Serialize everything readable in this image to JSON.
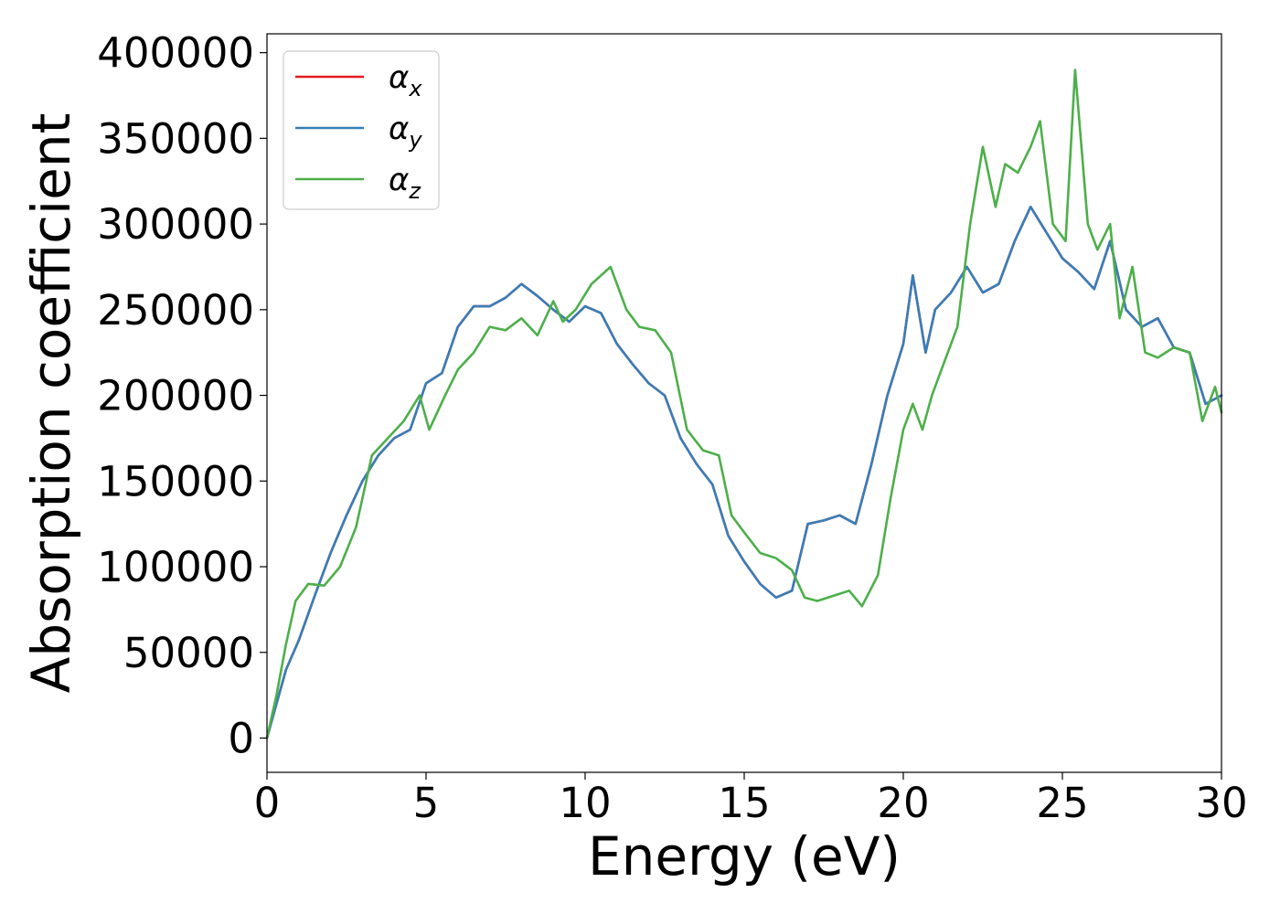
{
  "chart_data": {
    "type": "line",
    "title": "",
    "xlabel": "Energy (eV)",
    "ylabel": "Absorption coefficient",
    "xlim": [
      0,
      30
    ],
    "ylim": [
      -20000,
      411000
    ],
    "xticks": [
      0,
      5,
      10,
      15,
      20,
      25,
      30
    ],
    "yticks": [
      0,
      50000,
      100000,
      150000,
      200000,
      250000,
      300000,
      350000,
      400000
    ],
    "grid": false,
    "legend_position": "upper-left",
    "series": [
      {
        "name": "α_x",
        "label_main": "α",
        "label_sub": "x",
        "color": "#e41a1c",
        "x": [
          0,
          0.3,
          0.6,
          1.0,
          1.5,
          2.0,
          2.5,
          3.0,
          3.5,
          4.0,
          4.5,
          5.0,
          5.5,
          6.0,
          6.5,
          7.0,
          7.5,
          8.0,
          8.5,
          9.0,
          9.5,
          10.0,
          10.5,
          11.0,
          11.5,
          12.0,
          12.5,
          13.0,
          13.5,
          14.0,
          14.5,
          15.0,
          15.5,
          16.0,
          16.5,
          17.0,
          17.5,
          18.0,
          18.5,
          19.0,
          19.5,
          20.0,
          20.3,
          20.7,
          21.0,
          21.5,
          22.0,
          22.5,
          23.0,
          23.5,
          24.0,
          24.5,
          25.0,
          25.5,
          26.0,
          26.5,
          27.0,
          27.5,
          28.0,
          28.5,
          29.0,
          29.5,
          30.0
        ],
        "y": [
          0,
          20000,
          40000,
          57000,
          83000,
          108000,
          130000,
          150000,
          165000,
          175000,
          180000,
          207000,
          213000,
          240000,
          252000,
          252000,
          257000,
          265000,
          258000,
          250000,
          243000,
          252000,
          248000,
          230000,
          218000,
          207000,
          200000,
          175000,
          160000,
          148000,
          118000,
          103000,
          90000,
          82000,
          86000,
          125000,
          127000,
          130000,
          125000,
          160000,
          200000,
          230000,
          270000,
          225000,
          250000,
          260000,
          275000,
          260000,
          265000,
          290000,
          310000,
          295000,
          280000,
          272000,
          262000,
          290000,
          250000,
          240000,
          245000,
          228000,
          225000,
          195000,
          200000
        ]
      },
      {
        "name": "α_y",
        "label_main": "α",
        "label_sub": "y",
        "color": "#377eb8",
        "x": [
          0,
          0.3,
          0.6,
          1.0,
          1.5,
          2.0,
          2.5,
          3.0,
          3.5,
          4.0,
          4.5,
          5.0,
          5.5,
          6.0,
          6.5,
          7.0,
          7.5,
          8.0,
          8.5,
          9.0,
          9.5,
          10.0,
          10.5,
          11.0,
          11.5,
          12.0,
          12.5,
          13.0,
          13.5,
          14.0,
          14.5,
          15.0,
          15.5,
          16.0,
          16.5,
          17.0,
          17.5,
          18.0,
          18.5,
          19.0,
          19.5,
          20.0,
          20.3,
          20.7,
          21.0,
          21.5,
          22.0,
          22.5,
          23.0,
          23.5,
          24.0,
          24.5,
          25.0,
          25.5,
          26.0,
          26.5,
          27.0,
          27.5,
          28.0,
          28.5,
          29.0,
          29.5,
          30.0
        ],
        "y": [
          0,
          20000,
          40000,
          57000,
          83000,
          108000,
          130000,
          150000,
          165000,
          175000,
          180000,
          207000,
          213000,
          240000,
          252000,
          252000,
          257000,
          265000,
          258000,
          250000,
          243000,
          252000,
          248000,
          230000,
          218000,
          207000,
          200000,
          175000,
          160000,
          148000,
          118000,
          103000,
          90000,
          82000,
          86000,
          125000,
          127000,
          130000,
          125000,
          160000,
          200000,
          230000,
          270000,
          225000,
          250000,
          260000,
          275000,
          260000,
          265000,
          290000,
          310000,
          295000,
          280000,
          272000,
          262000,
          290000,
          250000,
          240000,
          245000,
          228000,
          225000,
          195000,
          200000
        ]
      },
      {
        "name": "α_z",
        "label_main": "α",
        "label_sub": "z",
        "color": "#4daf4a",
        "x": [
          0,
          0.3,
          0.6,
          0.9,
          1.3,
          1.8,
          2.3,
          2.8,
          3.3,
          3.8,
          4.3,
          4.8,
          5.1,
          5.6,
          6.0,
          6.5,
          7.0,
          7.5,
          8.0,
          8.5,
          9.0,
          9.3,
          9.7,
          10.2,
          10.5,
          10.8,
          11.3,
          11.7,
          12.2,
          12.7,
          13.2,
          13.7,
          14.2,
          14.6,
          15.0,
          15.5,
          16.0,
          16.5,
          16.9,
          17.3,
          17.8,
          18.3,
          18.7,
          19.2,
          19.6,
          20.0,
          20.3,
          20.6,
          20.9,
          21.3,
          21.7,
          22.1,
          22.5,
          22.9,
          23.2,
          23.6,
          24.0,
          24.3,
          24.7,
          25.1,
          25.4,
          25.8,
          26.1,
          26.5,
          26.8,
          27.2,
          27.6,
          28.0,
          28.5,
          29.0,
          29.4,
          29.8,
          30.0
        ],
        "y": [
          0,
          25000,
          55000,
          80000,
          90000,
          89000,
          100000,
          123000,
          165000,
          175000,
          185000,
          200000,
          180000,
          200000,
          215000,
          225000,
          240000,
          238000,
          245000,
          235000,
          255000,
          243000,
          250000,
          265000,
          270000,
          275000,
          250000,
          240000,
          238000,
          225000,
          180000,
          168000,
          165000,
          130000,
          120000,
          108000,
          105000,
          98000,
          82000,
          80000,
          83000,
          86000,
          77000,
          95000,
          140000,
          180000,
          195000,
          180000,
          200000,
          220000,
          240000,
          300000,
          345000,
          310000,
          335000,
          330000,
          345000,
          360000,
          300000,
          290000,
          390000,
          300000,
          285000,
          300000,
          245000,
          275000,
          225000,
          222000,
          228000,
          225000,
          185000,
          205000,
          190000
        ]
      }
    ]
  }
}
